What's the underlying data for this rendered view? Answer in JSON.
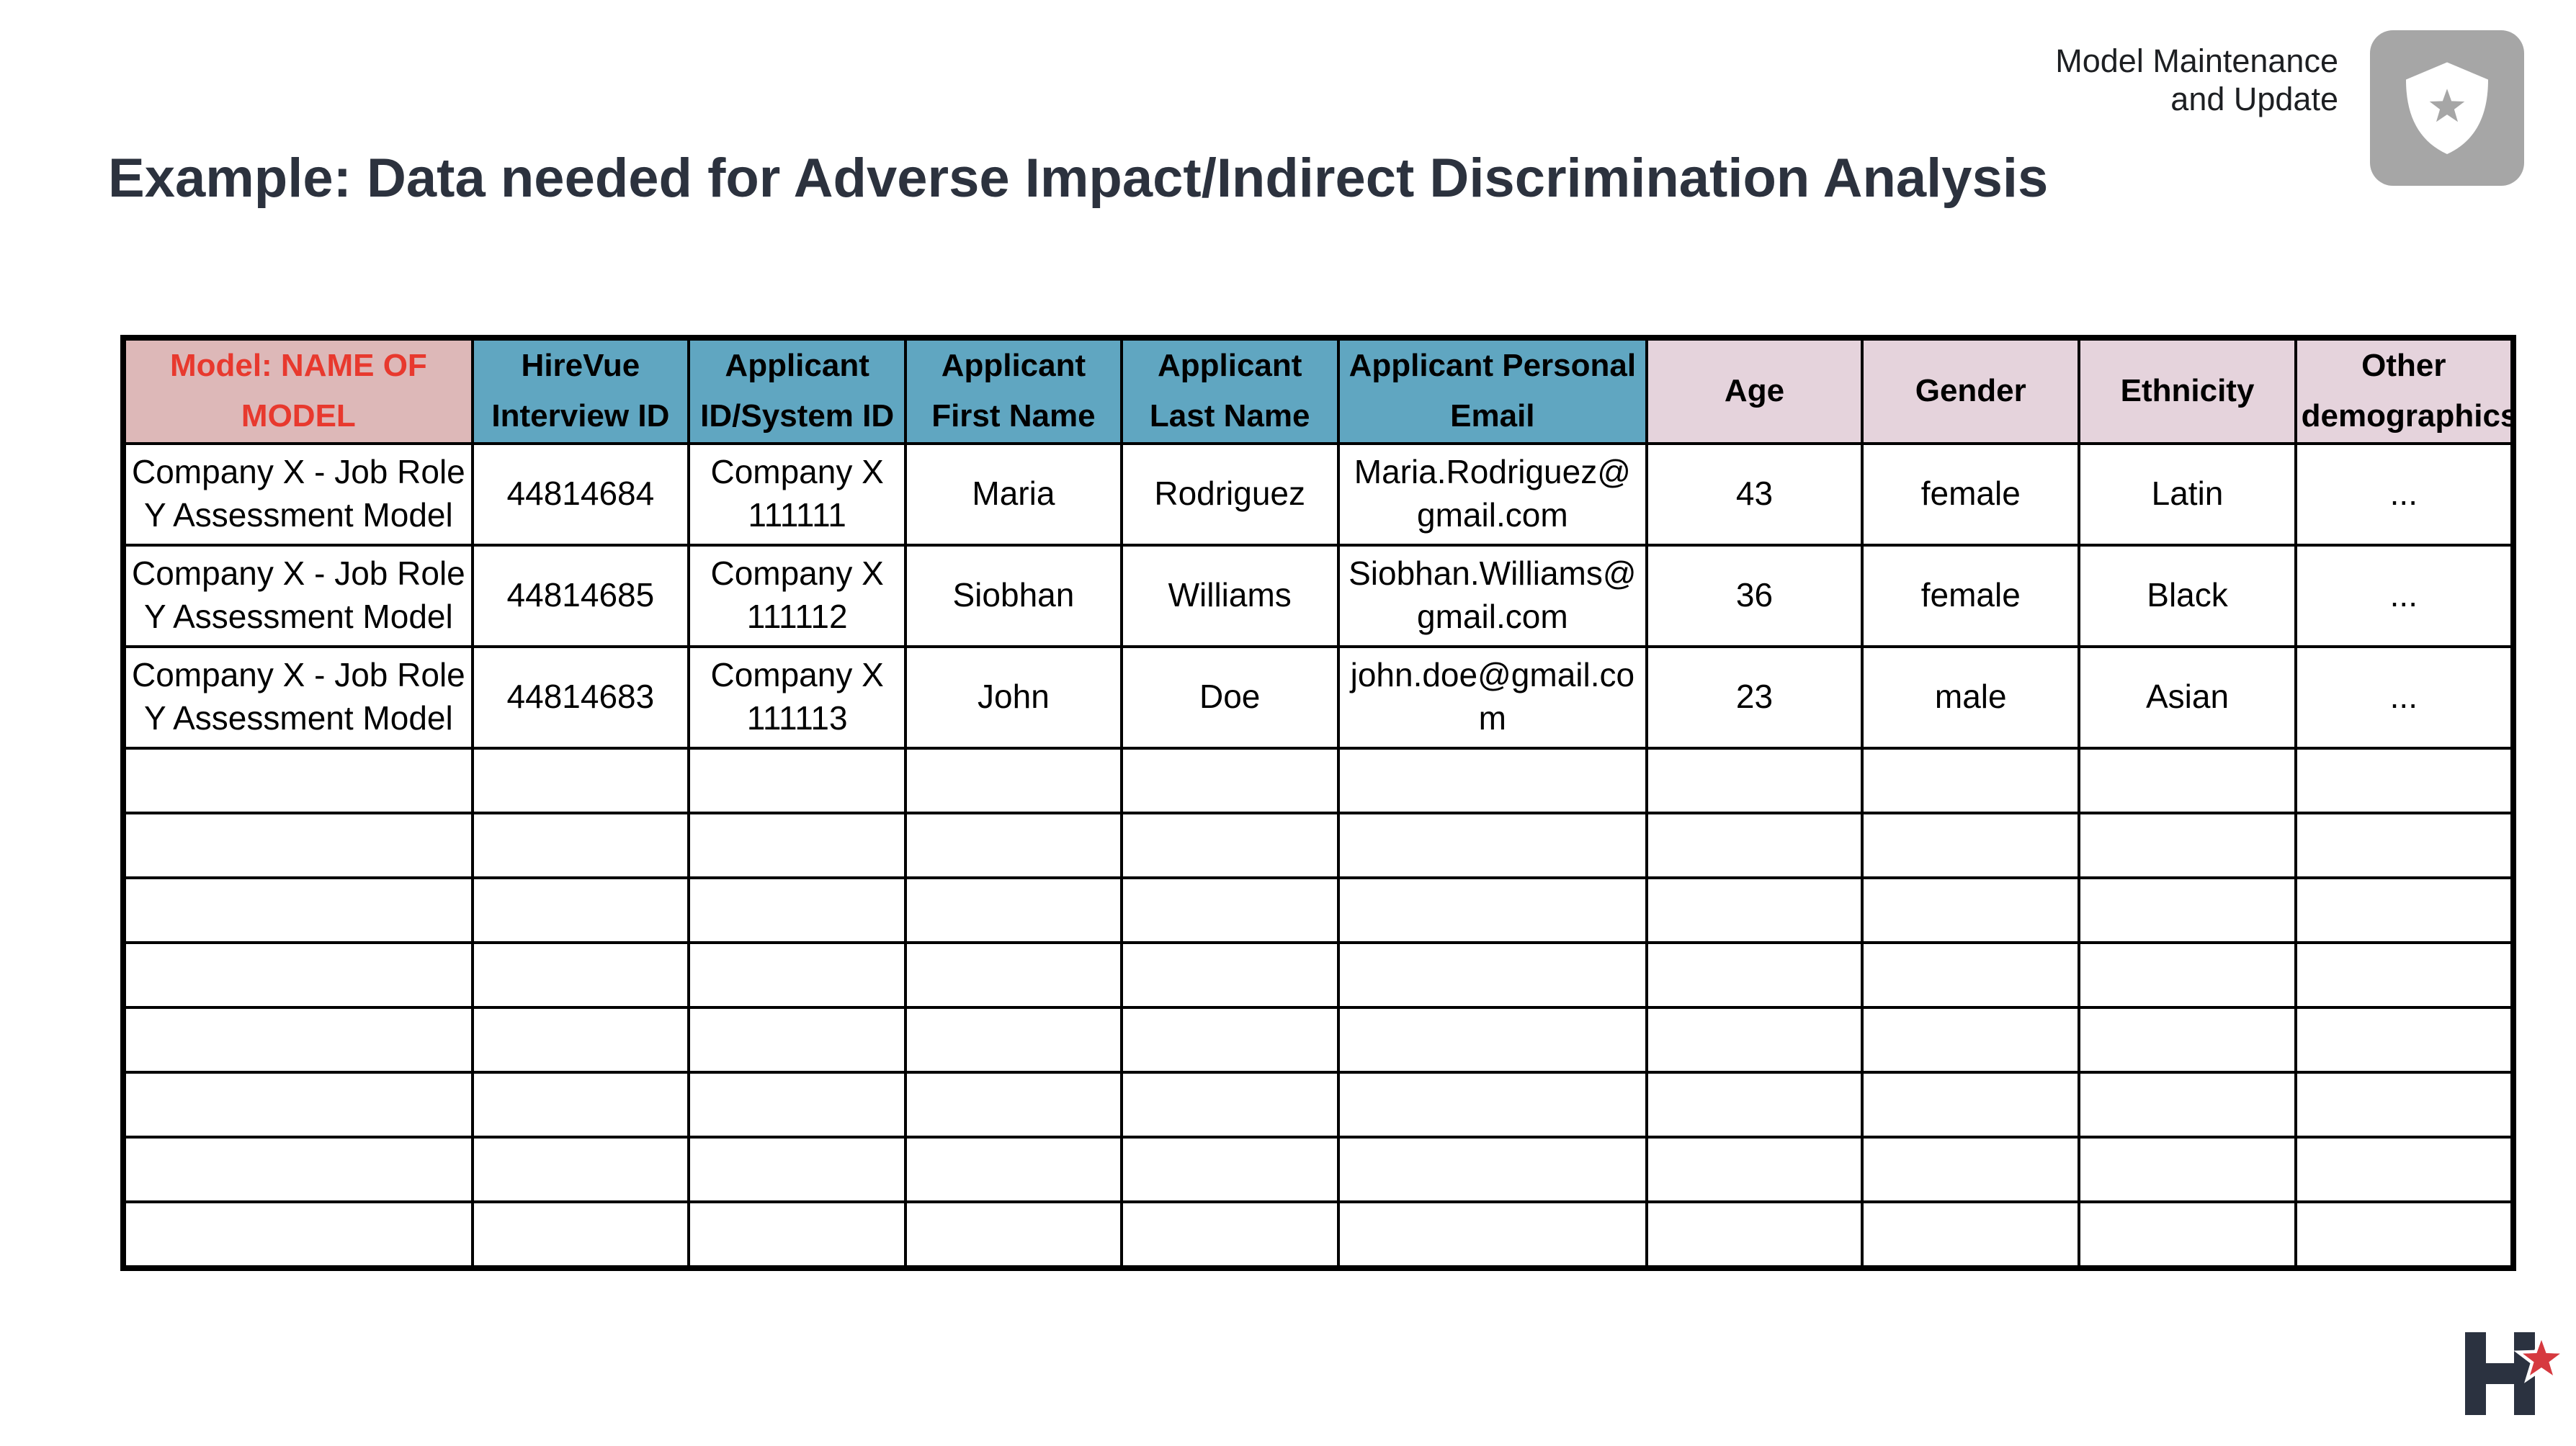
{
  "header": {
    "tag_line1": "Model Maintenance",
    "tag_line2": "and Update",
    "title": "Example: Data needed for Adverse Impact/Indirect Discrimination Analysis"
  },
  "icons": {
    "badge": "shield-star-icon",
    "logo": "hirevue-h-star-logo"
  },
  "colors": {
    "title_text": "#2c323e",
    "model_header_bg": "#ddb8b8",
    "model_header_text": "#e8392e",
    "identifier_header_bg": "#60a6c1",
    "demographic_header_bg": "#e5d3dc",
    "badge_bg": "#a6a6a6",
    "logo_navy": "#2b3240",
    "logo_star_red": "#d6393f",
    "table_border": "#000000"
  },
  "table": {
    "columns": [
      {
        "label": "Model: NAME OF MODEL",
        "group": "model"
      },
      {
        "label": "HireVue Interview ID",
        "group": "identifier"
      },
      {
        "label": "Applicant ID/System ID",
        "group": "identifier"
      },
      {
        "label": "Applicant First Name",
        "group": "identifier"
      },
      {
        "label": "Applicant Last Name",
        "group": "identifier"
      },
      {
        "label": "Applicant Personal Email",
        "group": "identifier"
      },
      {
        "label": "Age",
        "group": "demographic"
      },
      {
        "label": "Gender",
        "group": "demographic"
      },
      {
        "label": "Ethnicity",
        "group": "demographic"
      },
      {
        "label": "Other demographics",
        "group": "demographic"
      }
    ],
    "rows": [
      [
        "Company X - Job Role Y Assessment Model",
        "44814684",
        "Company X 111111",
        "Maria",
        "Rodriguez",
        "Maria.Rodriguez@gmail.com",
        "43",
        "female",
        "Latin",
        "..."
      ],
      [
        "Company X - Job Role Y Assessment Model",
        "44814685",
        "Company X 111112",
        "Siobhan",
        "Williams",
        "Siobhan.Williams@gmail.com",
        "36",
        "female",
        "Black",
        "..."
      ],
      [
        "Company X - Job Role Y Assessment Model",
        "44814683",
        "Company X 111113",
        "John",
        "Doe",
        "john.doe@gmail.com",
        "23",
        "male",
        "Asian",
        "..."
      ]
    ],
    "empty_row_count": 8
  }
}
